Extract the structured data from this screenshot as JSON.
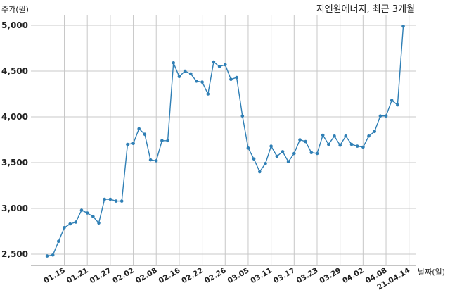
{
  "chart_data": {
    "type": "line",
    "title": "지엔원에너지, 최근 3개월",
    "ylabel": "주가(원)",
    "xlabel": "날짜(일)",
    "ylim": [
      2400,
      5100
    ],
    "yticks": [
      2500,
      3000,
      3500,
      4000,
      4500,
      5000
    ],
    "ytick_labels": [
      "2,500",
      "3,000",
      "3,500",
      "4,000",
      "4,500",
      "5,000"
    ],
    "xtick_labels": [
      "01.15",
      "01.21",
      "01.27",
      "02.02",
      "02.08",
      "02.16",
      "02.22",
      "02.26",
      "03.05",
      "03.11",
      "03.17",
      "03.23",
      "03.29",
      "04.02",
      "04.08",
      "21.04.14"
    ],
    "xtick_indices": [
      3,
      7,
      11,
      15,
      19,
      23,
      27,
      31,
      35,
      39,
      43,
      47,
      51,
      55,
      59,
      63
    ],
    "grid": true,
    "color": "#2f7fb5",
    "series": [
      {
        "values": [
          2480,
          2490,
          2640,
          2790,
          2830,
          2850,
          2980,
          2950,
          2910,
          2840,
          3100,
          3100,
          3080,
          3080,
          3700,
          3710,
          3870,
          3810,
          3530,
          3520,
          3740,
          3740,
          4590,
          4440,
          4500,
          4470,
          4390,
          4380,
          4250,
          4600,
          4550,
          4570,
          4410,
          4430,
          4010,
          3660,
          3540,
          3400,
          3490,
          3680,
          3570,
          3620,
          3510,
          3600,
          3750,
          3730,
          3610,
          3600,
          3800,
          3700,
          3790,
          3690,
          3790,
          3700,
          3680,
          3670,
          3790,
          3840,
          4010,
          4010,
          4180,
          4130,
          4990
        ]
      }
    ]
  }
}
